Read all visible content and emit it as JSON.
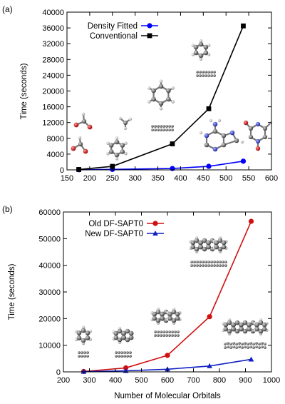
{
  "chart_data": [
    {
      "type": "line",
      "panel_label": "(a)",
      "xlabel": "",
      "ylabel": "Time (seconds)",
      "xlim": [
        150,
        600
      ],
      "ylim": [
        0,
        40000
      ],
      "xticks": [
        150,
        200,
        250,
        300,
        350,
        400,
        450,
        500,
        550,
        600
      ],
      "yticks": [
        0,
        4000,
        8000,
        12000,
        16000,
        20000,
        24000,
        28000,
        32000,
        36000,
        40000
      ],
      "legend_position": "top-left",
      "grid": false,
      "series": [
        {
          "name": "Density Fitted",
          "color": "#0000ff",
          "marker": "circle",
          "x": [
            176,
            250,
            382,
            462,
            538
          ],
          "y": [
            30,
            120,
            350,
            900,
            2200
          ]
        },
        {
          "name": "Conventional",
          "color": "#000000",
          "marker": "square",
          "x": [
            176,
            250,
            382,
            462,
            538
          ],
          "y": [
            100,
            900,
            6600,
            15500,
            36500
          ]
        }
      ]
    },
    {
      "type": "line",
      "panel_label": "(b)",
      "xlabel": "Number of Molecular Orbitals",
      "ylabel": "Time (seconds)",
      "xlim": [
        200,
        1000
      ],
      "ylim": [
        0,
        60000
      ],
      "xticks": [
        200,
        300,
        400,
        500,
        600,
        700,
        800,
        900,
        1000
      ],
      "yticks": [
        0,
        10000,
        20000,
        30000,
        40000,
        50000,
        60000
      ],
      "legend_position": "top-left",
      "grid": false,
      "series": [
        {
          "name": "Old DF-SAPT0",
          "color": "#d01010",
          "marker": "circle",
          "x": [
            278,
            440,
            600,
            762,
            922
          ],
          "y": [
            150,
            1500,
            6200,
            20700,
            56500
          ]
        },
        {
          "name": "New DF-SAPT0",
          "color": "#1020c0",
          "marker": "triangle",
          "x": [
            278,
            440,
            600,
            762,
            922
          ],
          "y": [
            100,
            400,
            1000,
            2200,
            4700
          ]
        }
      ]
    }
  ]
}
